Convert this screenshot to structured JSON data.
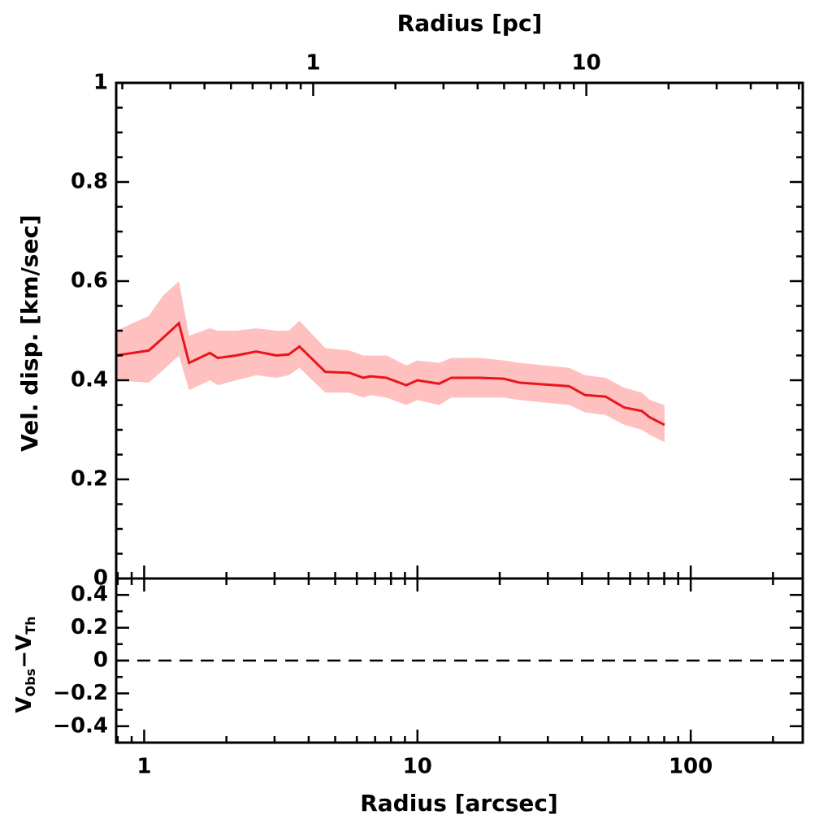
{
  "chart_data": [
    {
      "type": "band-line",
      "ylabel": "Vel. disp. [km/sec]",
      "x2label": "Radius [pc]",
      "x": [
        0.79,
        1.04,
        1.17,
        1.34,
        1.46,
        1.74,
        1.86,
        2.17,
        2.57,
        3.05,
        3.38,
        3.7,
        4.6,
        5.65,
        6.33,
        6.74,
        7.7,
        9.1,
        10.0,
        12.0,
        13.3,
        16.9,
        20.7,
        23.7,
        35.9,
        41.1,
        48.8,
        57.1,
        66.2,
        70.9,
        80.2
      ],
      "values": [
        0.45,
        0.46,
        0.485,
        0.515,
        0.435,
        0.455,
        0.445,
        0.45,
        0.458,
        0.45,
        0.452,
        0.468,
        0.417,
        0.415,
        0.405,
        0.408,
        0.405,
        0.39,
        0.4,
        0.393,
        0.405,
        0.405,
        0.403,
        0.395,
        0.388,
        0.37,
        0.367,
        0.345,
        0.338,
        0.325,
        0.31
      ],
      "lower": [
        0.4,
        0.395,
        0.42,
        0.45,
        0.38,
        0.4,
        0.39,
        0.4,
        0.41,
        0.405,
        0.41,
        0.425,
        0.375,
        0.375,
        0.365,
        0.37,
        0.365,
        0.35,
        0.36,
        0.35,
        0.365,
        0.365,
        0.365,
        0.36,
        0.35,
        0.335,
        0.33,
        0.31,
        0.3,
        0.29,
        0.275
      ],
      "upper": [
        0.5,
        0.53,
        0.57,
        0.6,
        0.49,
        0.505,
        0.5,
        0.5,
        0.505,
        0.5,
        0.5,
        0.52,
        0.465,
        0.46,
        0.45,
        0.45,
        0.45,
        0.43,
        0.44,
        0.435,
        0.445,
        0.445,
        0.44,
        0.435,
        0.425,
        0.41,
        0.405,
        0.385,
        0.375,
        0.36,
        0.35
      ],
      "color": "#e8161b",
      "band_color": "#ffc0c0",
      "ylim": [
        0,
        1
      ],
      "yticks": [
        0,
        0.2,
        0.4,
        0.6,
        0.8,
        1
      ],
      "yminorticks": [
        0.05,
        0.1,
        0.15,
        0.25,
        0.3,
        0.35,
        0.45,
        0.5,
        0.55,
        0.65,
        0.7,
        0.75,
        0.85,
        0.9,
        0.95
      ],
      "x2lim": [
        0.19,
        62
      ],
      "x2ticks": [
        1,
        10
      ],
      "x2minorticks": [
        0.2,
        0.3,
        0.4,
        0.5,
        0.6,
        0.7,
        0.8,
        0.9,
        2,
        3,
        4,
        5,
        6,
        7,
        8,
        9,
        20,
        30,
        40,
        50,
        60
      ]
    },
    {
      "type": "residual",
      "xlabel": "Radius [arcsec]",
      "ylabel_parts": [
        "V",
        "Obs",
        "−V",
        "Th"
      ],
      "xlim": [
        0.79,
        257
      ],
      "xticks": [
        1,
        10,
        100
      ],
      "xminorticks": [
        0.8,
        0.9,
        2,
        3,
        4,
        5,
        6,
        7,
        8,
        9,
        20,
        30,
        40,
        50,
        60,
        70,
        80,
        90,
        200
      ],
      "ylim": [
        -0.5,
        0.5
      ],
      "yticks": [
        {
          "value": 0.4,
          "label": "0.4"
        },
        {
          "value": 0.2,
          "label": "0.2"
        },
        0,
        {
          "value": -0.2,
          "label": "−0.2"
        },
        {
          "value": -0.4,
          "label": "−0.4"
        }
      ],
      "yminorticks": [
        0.3,
        0.1,
        -0.1,
        -0.3
      ],
      "reference_line": 0
    }
  ]
}
